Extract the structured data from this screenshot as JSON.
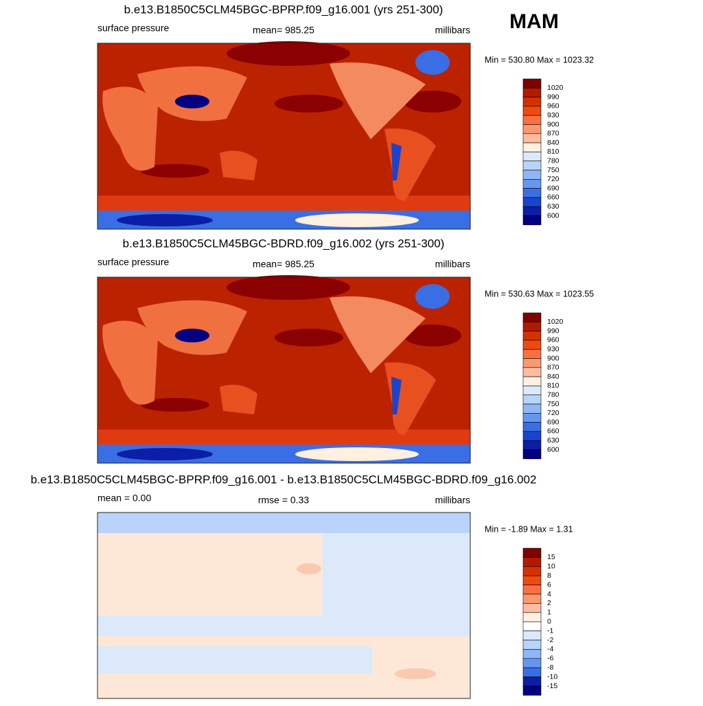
{
  "season": "MAM",
  "panels": [
    {
      "title": "b.e13.B1850C5CLM45BGC-BPRP.f09_g16.001 (yrs 251-300)",
      "left": "surface pressure",
      "center": "mean= 985.25",
      "right": "millibars",
      "minmax": "Min = 530.80 Max = 1023.32",
      "levels": [
        "1020",
        "990",
        "960",
        "930",
        "900",
        "870",
        "840",
        "810",
        "780",
        "750",
        "720",
        "690",
        "660",
        "630",
        "600"
      ],
      "colors": [
        "#800000",
        "#b21a00",
        "#d63000",
        "#f04a10",
        "#fa7040",
        "#fc9870",
        "#fdbca0",
        "#fff0e0",
        "#dbe9fb",
        "#b8d4fb",
        "#8fb6f7",
        "#6596f0",
        "#3a6ee4",
        "#1a44d0",
        "#0b1ea8",
        "#000080"
      ]
    },
    {
      "title": "b.e13.B1850C5CLM45BGC-BDRD.f09_g16.002 (yrs 251-300)",
      "left": "surface pressure",
      "center": "mean= 985.25",
      "right": "millibars",
      "minmax": "Min = 530.63 Max = 1023.55",
      "levels": [
        "1020",
        "990",
        "960",
        "930",
        "900",
        "870",
        "840",
        "810",
        "780",
        "750",
        "720",
        "690",
        "660",
        "630",
        "600"
      ],
      "colors": [
        "#800000",
        "#b21a00",
        "#d63000",
        "#f04a10",
        "#fa7040",
        "#fc9870",
        "#fdbca0",
        "#fff0e0",
        "#dbe9fb",
        "#b8d4fb",
        "#8fb6f7",
        "#6596f0",
        "#3a6ee4",
        "#1a44d0",
        "#0b1ea8",
        "#000080"
      ]
    },
    {
      "title": "b.e13.B1850C5CLM45BGC-BPRP.f09_g16.001 - b.e13.B1850C5CLM45BGC-BDRD.f09_g16.002",
      "left": "mean =   0.00",
      "center": "rmse =   0.33",
      "right": "millibars",
      "minmax": "Min =  -1.89 Max =   1.31",
      "levels": [
        "15",
        "10",
        "8",
        "6",
        "4",
        "2",
        "1",
        "0",
        "-1",
        "-2",
        "-4",
        "-6",
        "-8",
        "-10",
        "-15"
      ],
      "colors": [
        "#800000",
        "#b21a00",
        "#d63000",
        "#f04a10",
        "#fa7040",
        "#fc9870",
        "#fdbca0",
        "#fff0e0",
        "#ffffff",
        "#dbe9fb",
        "#b8d4fb",
        "#8fb6f7",
        "#6596f0",
        "#3a6ee4",
        "#0b1ea8",
        "#000080"
      ]
    }
  ]
}
